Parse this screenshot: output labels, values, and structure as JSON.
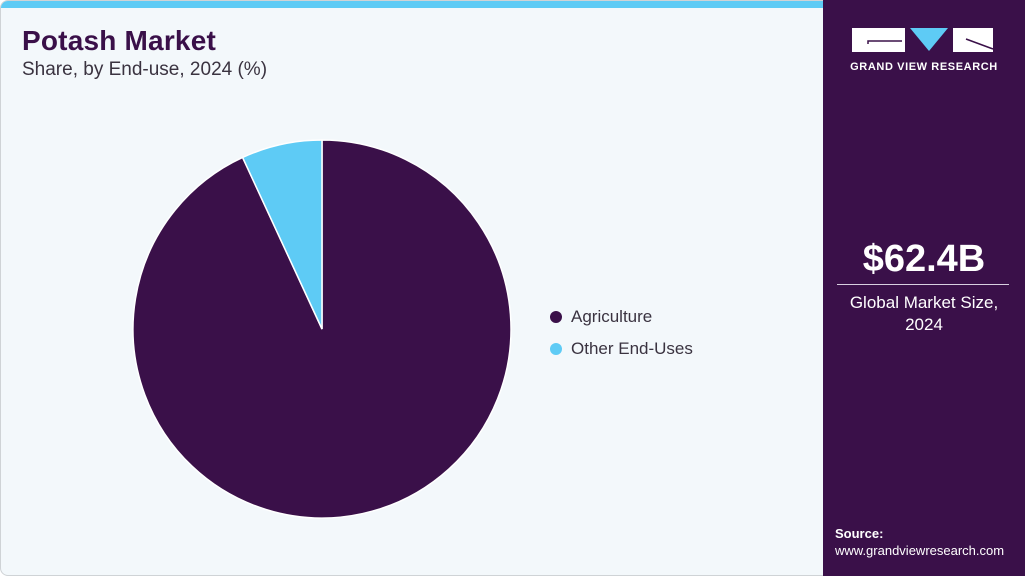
{
  "header": {
    "title": "Potash Market",
    "subtitle": "Share, by End-use, 2024 (%)"
  },
  "legend": {
    "items": [
      {
        "label": "Agriculture",
        "color": "#3a1049"
      },
      {
        "label": "Other End-Uses",
        "color": "#5ecbf5"
      }
    ]
  },
  "sidebar": {
    "logo_text": "GRAND VIEW RESEARCH",
    "market_size": "$62.4B",
    "market_label_line1": "Global Market Size,",
    "market_label_line2": "2024",
    "source_title": "Source:",
    "source_url": "www.grandviewresearch.com"
  },
  "colors": {
    "brand_purple": "#3a1049",
    "accent_blue": "#5ecbf5",
    "background": "#f3f8fb"
  },
  "chart_data": {
    "type": "pie",
    "title": "Potash Market",
    "subtitle": "Share, by End-use, 2024 (%)",
    "categories": [
      "Agriculture",
      "Other End-Uses"
    ],
    "values": [
      93.1,
      6.9
    ],
    "colors": [
      "#3a1049",
      "#5ecbf5"
    ],
    "legend_position": "right",
    "start_angle": "12 o'clock, counter-clockwise for Other End-Uses"
  }
}
